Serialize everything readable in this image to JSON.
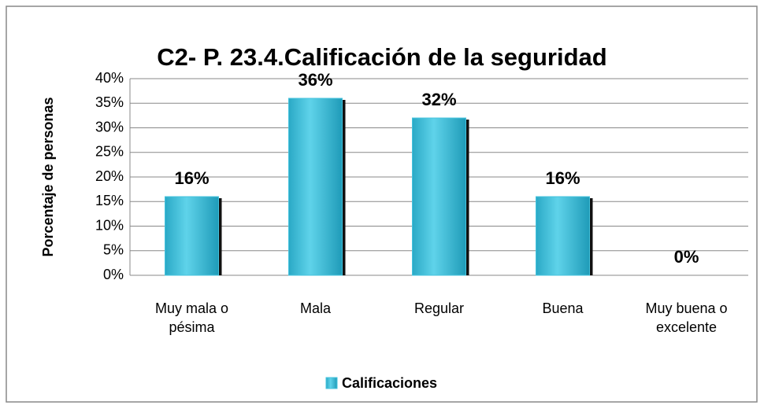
{
  "chart_data": {
    "type": "bar",
    "title": "C2- P. 23.4.Calificación de la seguridad",
    "y_label": "Porcentaje de personas",
    "categories": [
      "Muy mala o pésima",
      "Mala",
      "Regular",
      "Buena",
      "Muy buena o excelente"
    ],
    "series": [
      {
        "name": "Calificaciones",
        "color": "#44c3dd",
        "values": [
          16,
          36,
          32,
          16,
          0
        ],
        "value_labels": [
          "16%",
          "36%",
          "32%",
          "16%",
          "0%"
        ]
      }
    ],
    "ylim": [
      0,
      40
    ],
    "yticks": [
      {
        "value": 0,
        "label": "0%"
      },
      {
        "value": 5,
        "label": "5%"
      },
      {
        "value": 10,
        "label": "10%"
      },
      {
        "value": 15,
        "label": "15%"
      },
      {
        "value": 20,
        "label": "20%"
      },
      {
        "value": 25,
        "label": "25%"
      },
      {
        "value": 30,
        "label": "30%"
      },
      {
        "value": 35,
        "label": "35%"
      },
      {
        "value": 40,
        "label": "40%"
      }
    ],
    "grid": true,
    "legend": "bottom"
  }
}
